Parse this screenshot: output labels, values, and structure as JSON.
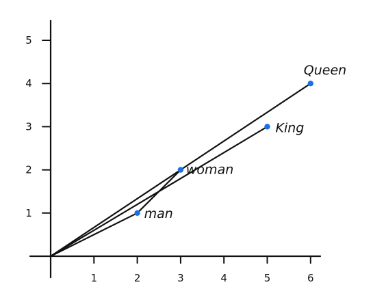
{
  "chart_data": {
    "type": "scatter",
    "title": "",
    "xlabel": "",
    "ylabel": "",
    "xlim": [
      0,
      6
    ],
    "ylim": [
      0,
      5
    ],
    "grid": false,
    "x_ticks": [
      "1",
      "2",
      "3",
      "4",
      "5",
      "6"
    ],
    "y_ticks": [
      "1",
      "2",
      "3",
      "4",
      "5"
    ],
    "point_color": "#1a6fe8",
    "line_color": "#111111",
    "points": [
      {
        "label": "man",
        "x": 2,
        "y": 1
      },
      {
        "label": "woman",
        "x": 3,
        "y": 2
      },
      {
        "label": "King",
        "x": 5,
        "y": 3
      },
      {
        "label": "Queen",
        "x": 6,
        "y": 4
      }
    ]
  }
}
